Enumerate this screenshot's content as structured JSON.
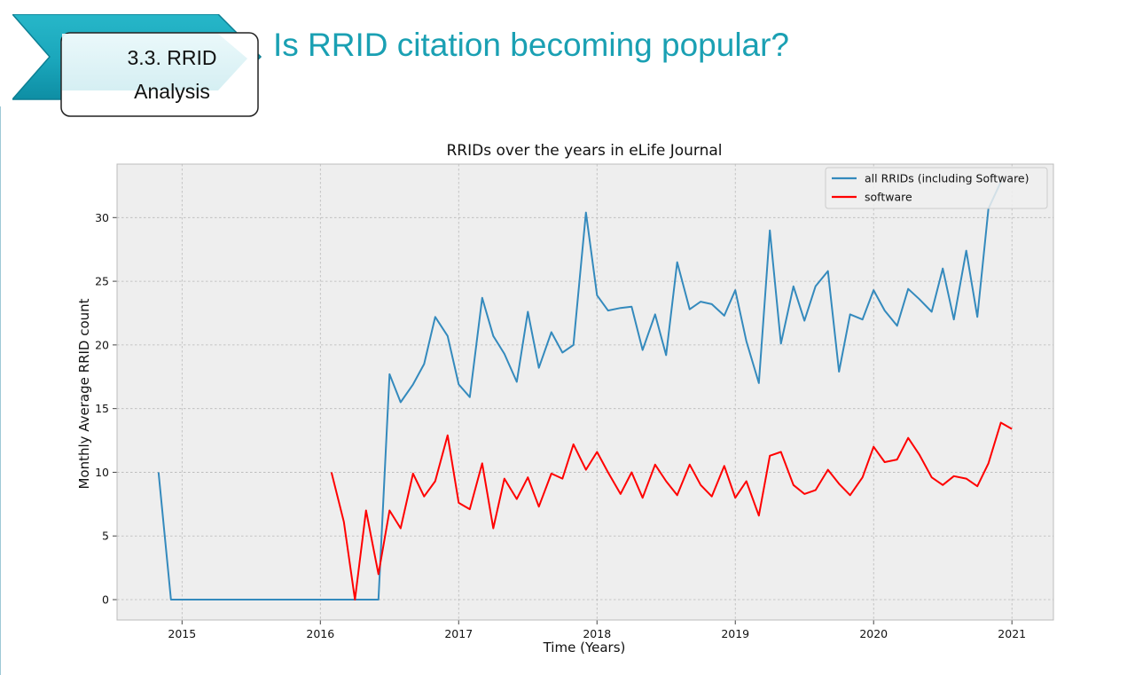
{
  "slide": {
    "section_line1": "3.3. RRID",
    "section_line2": "Analysis",
    "title": "Is RRID citation becoming popular?"
  },
  "chart_data": {
    "type": "line",
    "title": "RRIDs over the years in eLife Journal",
    "xlabel": "Time (Years)",
    "ylabel": "Monthly Average RRID count",
    "x_unit": "year",
    "xlim": [
      2014.53,
      2021.3
    ],
    "ylim": [
      -1.6,
      34.2
    ],
    "x_ticks": [
      2015,
      2016,
      2017,
      2018,
      2019,
      2020,
      2021
    ],
    "y_ticks": [
      0,
      5,
      10,
      15,
      20,
      25,
      30
    ],
    "grid": true,
    "legend_position": "top-right",
    "series": [
      {
        "name": "all RRIDs (including Software)",
        "color": "#348abd",
        "x": [
          2014.83,
          2014.92,
          2015.0,
          2015.5,
          2016.0,
          2016.42,
          2016.5,
          2016.58,
          2016.67,
          2016.75,
          2016.83,
          2016.92,
          2017.0,
          2017.08,
          2017.17,
          2017.25,
          2017.33,
          2017.42,
          2017.5,
          2017.58,
          2017.67,
          2017.75,
          2017.83,
          2017.92,
          2018.0,
          2018.08,
          2018.17,
          2018.25,
          2018.33,
          2018.42,
          2018.5,
          2018.58,
          2018.67,
          2018.75,
          2018.83,
          2018.92,
          2019.0,
          2019.08,
          2019.17,
          2019.25,
          2019.33,
          2019.42,
          2019.5,
          2019.58,
          2019.67,
          2019.75,
          2019.83,
          2019.92,
          2020.0,
          2020.08,
          2020.17,
          2020.25,
          2020.33,
          2020.42,
          2020.5,
          2020.58,
          2020.67,
          2020.75,
          2020.83,
          2020.92
        ],
        "y": [
          10.0,
          0.0,
          0.0,
          0.0,
          0.0,
          0.0,
          17.7,
          15.5,
          16.9,
          18.5,
          22.2,
          20.7,
          16.9,
          15.9,
          23.7,
          20.7,
          19.3,
          17.1,
          22.6,
          18.2,
          21.0,
          19.4,
          20.0,
          30.4,
          23.9,
          22.7,
          22.9,
          23.0,
          19.6,
          22.4,
          19.2,
          26.5,
          22.8,
          23.4,
          23.2,
          22.3,
          24.3,
          20.3,
          17.0,
          29.0,
          20.1,
          24.6,
          21.9,
          24.6,
          25.8,
          17.9,
          22.4,
          22.0,
          24.3,
          22.7,
          21.5,
          24.4,
          23.6,
          22.6,
          26.0,
          22.0,
          27.4,
          22.2,
          30.7,
          32.8
        ]
      },
      {
        "name": "software",
        "color": "#ff0000",
        "x": [
          2016.08,
          2016.17,
          2016.25,
          2016.33,
          2016.42,
          2016.5,
          2016.58,
          2016.67,
          2016.75,
          2016.83,
          2016.92,
          2017.0,
          2017.08,
          2017.17,
          2017.25,
          2017.33,
          2017.42,
          2017.5,
          2017.58,
          2017.67,
          2017.75,
          2017.83,
          2017.92,
          2018.0,
          2018.08,
          2018.17,
          2018.25,
          2018.33,
          2018.42,
          2018.5,
          2018.58,
          2018.67,
          2018.75,
          2018.83,
          2018.92,
          2019.0,
          2019.08,
          2019.17,
          2019.25,
          2019.33,
          2019.42,
          2019.5,
          2019.58,
          2019.67,
          2019.75,
          2019.83,
          2019.92,
          2020.0,
          2020.08,
          2020.17,
          2020.25,
          2020.33,
          2020.42,
          2020.5,
          2020.58,
          2020.67,
          2020.75,
          2020.83,
          2020.92,
          2021.0
        ],
        "y": [
          10.0,
          6.1,
          0.0,
          7.0,
          2.0,
          7.0,
          5.6,
          9.9,
          8.1,
          9.3,
          12.9,
          7.6,
          7.1,
          10.7,
          5.6,
          9.5,
          7.9,
          9.6,
          7.3,
          9.9,
          9.5,
          12.2,
          10.2,
          11.6,
          10.0,
          8.3,
          10.0,
          8.0,
          10.6,
          9.3,
          8.2,
          10.6,
          9.0,
          8.1,
          10.5,
          8.0,
          9.3,
          6.6,
          11.3,
          11.6,
          9.0,
          8.3,
          8.6,
          10.2,
          9.1,
          8.2,
          9.6,
          12.0,
          10.8,
          11.0,
          12.7,
          11.4,
          9.6,
          9.0,
          9.7,
          9.5,
          8.9,
          10.7,
          13.9,
          13.4
        ]
      }
    ]
  }
}
